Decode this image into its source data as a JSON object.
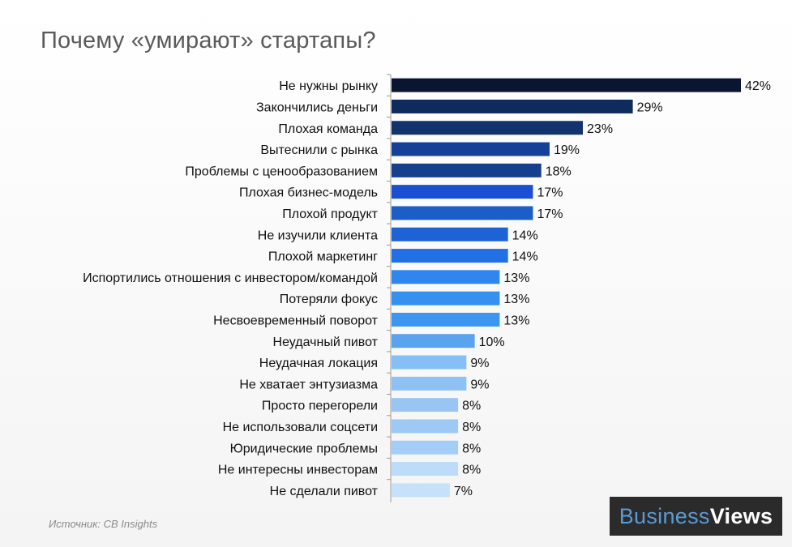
{
  "title": "Почему «умирают» стартапы?",
  "source": "Источник:  CB Insights",
  "brand": {
    "part1": "Business",
    "part2": "Views"
  },
  "chart_data": {
    "type": "bar",
    "orientation": "horizontal",
    "title": "Почему «умирают» стартапы?",
    "unit": "%",
    "categories": [
      "Не нужны рынку",
      "Закончились деньги",
      "Плохая команда",
      "Вытеснили с рынка",
      "Проблемы с ценообразованием",
      "Плохая бизнес-модель",
      "Плохой продукт",
      "Не изучили клиента",
      "Плохой маркетинг",
      "Испортились отношения с инвестором/командой",
      "Потеряли фокус",
      "Несвоевременный поворот",
      "Неудачный пивот",
      "Неудачная локация",
      "Не хватает энтузиазма",
      "Просто перегорели",
      "Не использовали соцсети",
      "Юридические проблемы",
      "Не интересны инвесторам",
      "Не сделали пивот"
    ],
    "values": [
      42,
      29,
      23,
      19,
      18,
      17,
      17,
      14,
      14,
      13,
      13,
      13,
      10,
      9,
      9,
      8,
      8,
      8,
      8,
      7
    ],
    "labels": [
      "42%",
      "29%",
      "23%",
      "19%",
      "18%",
      "17%",
      "17%",
      "14%",
      "14%",
      "13%",
      "13%",
      "13%",
      "10%",
      "9%",
      "9%",
      "8%",
      "8%",
      "8%",
      "8%",
      "7%"
    ],
    "colors": [
      "#0a1630",
      "#0f2a5c",
      "#12336e",
      "#15409a",
      "#163f8e",
      "#1a4fd1",
      "#1b5ec8",
      "#1d63d6",
      "#2270e6",
      "#2f86ee",
      "#3590f0",
      "#3c96f0",
      "#5aa3ee",
      "#86bff5",
      "#8ec2f5",
      "#98c5f4",
      "#9ec9f5",
      "#a3cdf6",
      "#bcdcf9",
      "#c6e1fa"
    ],
    "xlim": [
      0,
      42
    ]
  }
}
